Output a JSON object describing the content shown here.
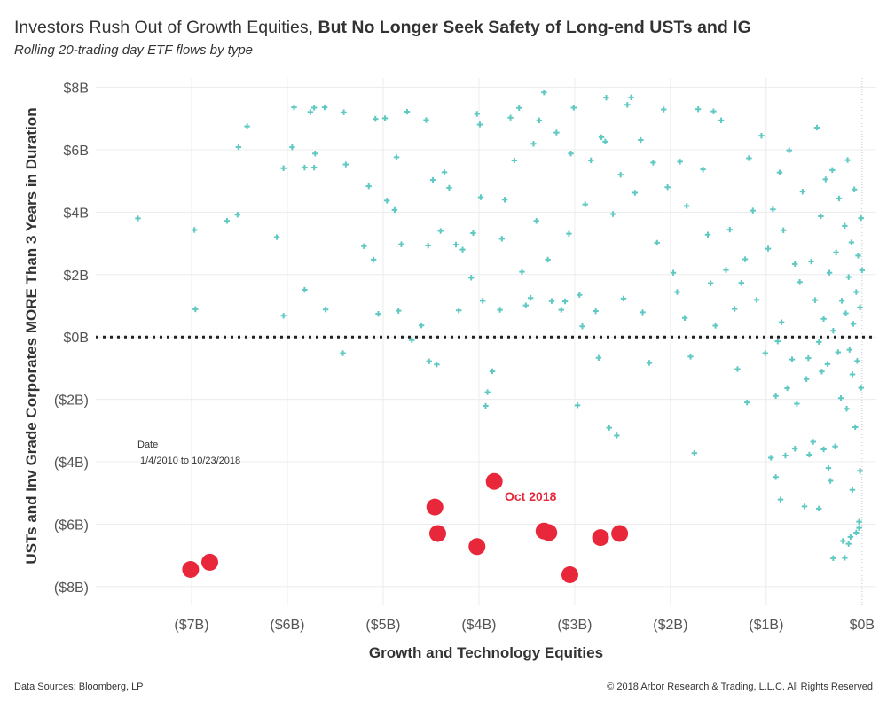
{
  "title_normal": "Investors Rush Out of Growth Equities, ",
  "title_bold": "But No Longer Seek Safety of Long-end USTs and IG",
  "subtitle": "Rolling 20-trading day ETF flows by type",
  "footer_left": "Data Sources: Bloomberg, LP",
  "footer_right": "© 2018 Arbor Research & Trading, L.L.C. All Rights Reserved",
  "date_legend": {
    "label": "Date",
    "range": "1/4/2010 to 10/23/2018"
  },
  "colors": {
    "history": "#5ec8c2",
    "oct2018": "#e8283a",
    "grid": "#ececec",
    "zero_line": "#222222"
  },
  "chart_data": {
    "type": "scatter",
    "xlabel": "Growth and Technology Equities",
    "ylabel": "USTs and Inv Grade Corporates MORE Than 3 Years in Duration",
    "units": "USD billions",
    "xlim": [
      -8.0,
      0.15
    ],
    "ylim": [
      -8.6,
      8.3
    ],
    "x_ticks": [
      -7,
      -6,
      -5,
      -4,
      -3,
      -2,
      -1,
      0
    ],
    "x_tick_labels": [
      "($7B)",
      "($6B)",
      "($5B)",
      "($4B)",
      "($3B)",
      "($2B)",
      "($1B)",
      "$0B"
    ],
    "y_ticks": [
      8,
      6,
      4,
      2,
      0,
      -2,
      -4,
      -6,
      -8
    ],
    "y_tick_labels": [
      "$8B",
      "$6B",
      "$4B",
      "$2B",
      "$0B",
      "($2B)",
      "($4B)",
      "($6B)",
      "($8B)"
    ],
    "grid": "on",
    "zero_reference_line": "dotted horizontal at y = 0",
    "annotations": [
      {
        "text": "Oct 2018"
      }
    ],
    "series": [
      {
        "name": "",
        "marker": "plus",
        "points": [
          [
            -7.56,
            3.8
          ],
          [
            -6.97,
            3.43
          ],
          [
            -6.96,
            0.89
          ],
          [
            -6.63,
            3.72
          ],
          [
            -6.52,
            3.92
          ],
          [
            -6.51,
            6.08
          ],
          [
            -6.42,
            6.75
          ],
          [
            -6.11,
            3.2
          ],
          [
            -6.04,
            0.68
          ],
          [
            -6.04,
            5.41
          ],
          [
            -5.95,
            6.08
          ],
          [
            -5.93,
            7.36
          ],
          [
            -5.82,
            1.51
          ],
          [
            -5.82,
            5.43
          ],
          [
            -5.76,
            7.21
          ],
          [
            -5.72,
            7.35
          ],
          [
            -5.72,
            5.43
          ],
          [
            -5.71,
            5.88
          ],
          [
            -5.61,
            7.36
          ],
          [
            -5.6,
            0.88
          ],
          [
            -5.42,
            -0.52
          ],
          [
            -5.41,
            7.2
          ],
          [
            -5.39,
            5.53
          ],
          [
            -5.2,
            2.91
          ],
          [
            -5.15,
            4.83
          ],
          [
            -5.1,
            2.48
          ],
          [
            -5.08,
            6.99
          ],
          [
            -5.05,
            0.74
          ],
          [
            -4.98,
            7.01
          ],
          [
            -4.96,
            4.37
          ],
          [
            -4.88,
            4.07
          ],
          [
            -4.86,
            5.76
          ],
          [
            -4.84,
            0.84
          ],
          [
            -4.81,
            2.97
          ],
          [
            -4.75,
            7.22
          ],
          [
            -4.7,
            -0.1
          ],
          [
            -4.6,
            0.37
          ],
          [
            -4.55,
            6.95
          ],
          [
            -4.53,
            2.93
          ],
          [
            -4.52,
            -0.78
          ],
          [
            -4.48,
            5.03
          ],
          [
            -4.44,
            -0.88
          ],
          [
            -4.4,
            3.4
          ],
          [
            -4.36,
            5.28
          ],
          [
            -4.31,
            4.78
          ],
          [
            -4.24,
            2.96
          ],
          [
            -4.21,
            0.85
          ],
          [
            -4.17,
            2.8
          ],
          [
            -4.08,
            1.9
          ],
          [
            -4.06,
            3.33
          ],
          [
            -4.02,
            7.15
          ],
          [
            -3.99,
            6.81
          ],
          [
            -3.98,
            4.48
          ],
          [
            -3.96,
            1.16
          ],
          [
            -3.93,
            -2.21
          ],
          [
            -3.91,
            -1.77
          ],
          [
            -3.86,
            -1.1
          ],
          [
            -3.78,
            0.87
          ],
          [
            -3.76,
            3.15
          ],
          [
            -3.73,
            4.4
          ],
          [
            -3.67,
            7.03
          ],
          [
            -3.63,
            5.66
          ],
          [
            -3.58,
            7.34
          ],
          [
            -3.55,
            2.09
          ],
          [
            -3.51,
            1.01
          ],
          [
            -3.46,
            1.25
          ],
          [
            -3.43,
            6.19
          ],
          [
            -3.4,
            3.72
          ],
          [
            -3.37,
            6.94
          ],
          [
            -3.32,
            7.84
          ],
          [
            -3.28,
            2.48
          ],
          [
            -3.24,
            1.15
          ],
          [
            -3.19,
            6.55
          ],
          [
            -3.14,
            0.87
          ],
          [
            -3.1,
            1.14
          ],
          [
            -3.06,
            3.31
          ],
          [
            -3.04,
            5.88
          ],
          [
            -3.01,
            7.35
          ],
          [
            -2.97,
            -2.19
          ],
          [
            -2.95,
            1.35
          ],
          [
            -2.92,
            0.34
          ],
          [
            -2.89,
            4.25
          ],
          [
            -2.83,
            5.66
          ],
          [
            -2.78,
            0.83
          ],
          [
            -2.75,
            -0.67
          ],
          [
            -2.72,
            6.4
          ],
          [
            -2.68,
            6.26
          ],
          [
            -2.67,
            7.67
          ],
          [
            -2.64,
            -2.91
          ],
          [
            -2.6,
            3.94
          ],
          [
            -2.56,
            -3.16
          ],
          [
            -2.52,
            5.2
          ],
          [
            -2.49,
            1.23
          ],
          [
            -2.45,
            7.44
          ],
          [
            -2.41,
            7.68
          ],
          [
            -2.37,
            4.62
          ],
          [
            -2.31,
            6.31
          ],
          [
            -2.29,
            0.79
          ],
          [
            -2.22,
            -0.83
          ],
          [
            -2.18,
            5.59
          ],
          [
            -2.14,
            3.02
          ],
          [
            -2.07,
            7.29
          ],
          [
            -2.03,
            4.8
          ],
          [
            -1.97,
            2.06
          ],
          [
            -1.93,
            1.44
          ],
          [
            -1.9,
            5.62
          ],
          [
            -1.85,
            0.61
          ],
          [
            -1.83,
            4.2
          ],
          [
            -1.79,
            -0.63
          ],
          [
            -1.75,
            -3.72
          ],
          [
            -1.71,
            7.3
          ],
          [
            -1.66,
            5.37
          ],
          [
            -1.61,
            3.28
          ],
          [
            -1.58,
            1.72
          ],
          [
            -1.55,
            7.23
          ],
          [
            -1.53,
            0.36
          ],
          [
            -1.47,
            6.94
          ],
          [
            -1.42,
            2.15
          ],
          [
            -1.38,
            3.44
          ],
          [
            -1.33,
            0.9
          ],
          [
            -1.3,
            -1.03
          ],
          [
            -1.26,
            1.73
          ],
          [
            -1.22,
            2.49
          ],
          [
            -1.18,
            5.73
          ],
          [
            -1.14,
            4.05
          ],
          [
            -1.1,
            1.19
          ],
          [
            -1.05,
            6.45
          ],
          [
            -1.01,
            -0.52
          ],
          [
            -0.98,
            2.83
          ],
          [
            -0.95,
            -3.87
          ],
          [
            -0.93,
            4.09
          ],
          [
            -0.9,
            -1.89
          ],
          [
            -0.88,
            -0.14
          ],
          [
            -0.86,
            5.27
          ],
          [
            -0.84,
            0.47
          ],
          [
            -0.82,
            3.42
          ],
          [
            -0.78,
            -1.64
          ],
          [
            -0.76,
            5.98
          ],
          [
            -0.73,
            -0.72
          ],
          [
            -0.7,
            2.34
          ],
          [
            -0.68,
            -2.14
          ],
          [
            -0.65,
            1.76
          ],
          [
            -0.62,
            4.66
          ],
          [
            -0.58,
            -1.35
          ],
          [
            -0.56,
            -0.68
          ],
          [
            -0.53,
            2.42
          ],
          [
            -0.51,
            -3.36
          ],
          [
            -0.49,
            1.18
          ],
          [
            -0.47,
            6.71
          ],
          [
            -0.45,
            -0.16
          ],
          [
            -0.43,
            3.87
          ],
          [
            -0.42,
            -1.11
          ],
          [
            -0.4,
            0.58
          ],
          [
            -0.38,
            5.05
          ],
          [
            -0.36,
            -0.87
          ],
          [
            -0.34,
            2.06
          ],
          [
            -0.33,
            -4.61
          ],
          [
            -0.31,
            5.35
          ],
          [
            -0.3,
            0.2
          ],
          [
            -0.28,
            -3.51
          ],
          [
            -0.27,
            2.71
          ],
          [
            -0.25,
            -0.49
          ],
          [
            -0.24,
            4.44
          ],
          [
            -0.22,
            -1.96
          ],
          [
            -0.21,
            1.16
          ],
          [
            -0.2,
            -6.54
          ],
          [
            -0.18,
            3.56
          ],
          [
            -0.17,
            0.76
          ],
          [
            -0.16,
            -2.3
          ],
          [
            -0.15,
            5.67
          ],
          [
            -0.14,
            1.92
          ],
          [
            -0.13,
            -0.41
          ],
          [
            -0.12,
            -6.41
          ],
          [
            -0.11,
            3.03
          ],
          [
            -0.1,
            -1.2
          ],
          [
            -0.09,
            0.42
          ],
          [
            -0.08,
            4.73
          ],
          [
            -0.07,
            -2.89
          ],
          [
            -0.06,
            1.44
          ],
          [
            -0.05,
            -0.77
          ],
          [
            -0.04,
            2.61
          ],
          [
            -0.03,
            -6.12
          ],
          [
            -0.02,
            -4.29
          ],
          [
            -0.02,
            0.95
          ],
          [
            -0.01,
            3.81
          ],
          [
            -0.01,
            -1.63
          ],
          [
            0.0,
            2.14
          ],
          [
            -0.03,
            -5.92
          ],
          [
            -0.06,
            -6.27
          ],
          [
            -0.14,
            -6.63
          ],
          [
            -0.18,
            -7.08
          ],
          [
            -0.3,
            -7.09
          ],
          [
            -0.45,
            -5.5
          ],
          [
            -0.6,
            -5.43
          ],
          [
            -0.85,
            -5.21
          ],
          [
            -0.9,
            -4.49
          ],
          [
            -0.55,
            -3.77
          ],
          [
            -0.7,
            -3.58
          ],
          [
            -0.8,
            -3.8
          ],
          [
            -0.4,
            -3.6
          ],
          [
            -0.35,
            -4.2
          ],
          [
            -0.1,
            -4.9
          ],
          [
            -1.2,
            -2.1
          ]
        ]
      },
      {
        "name": "",
        "marker": "circle",
        "points": [
          [
            -7.01,
            -7.45
          ],
          [
            -6.81,
            -7.22
          ],
          [
            -4.46,
            -5.45
          ],
          [
            -4.43,
            -6.3
          ],
          [
            -4.02,
            -6.72
          ],
          [
            -3.84,
            -4.63
          ],
          [
            -3.32,
            -6.22
          ],
          [
            -3.27,
            -6.27
          ],
          [
            -3.05,
            -7.62
          ],
          [
            -2.73,
            -6.43
          ],
          [
            -2.53,
            -6.3
          ]
        ]
      }
    ]
  }
}
